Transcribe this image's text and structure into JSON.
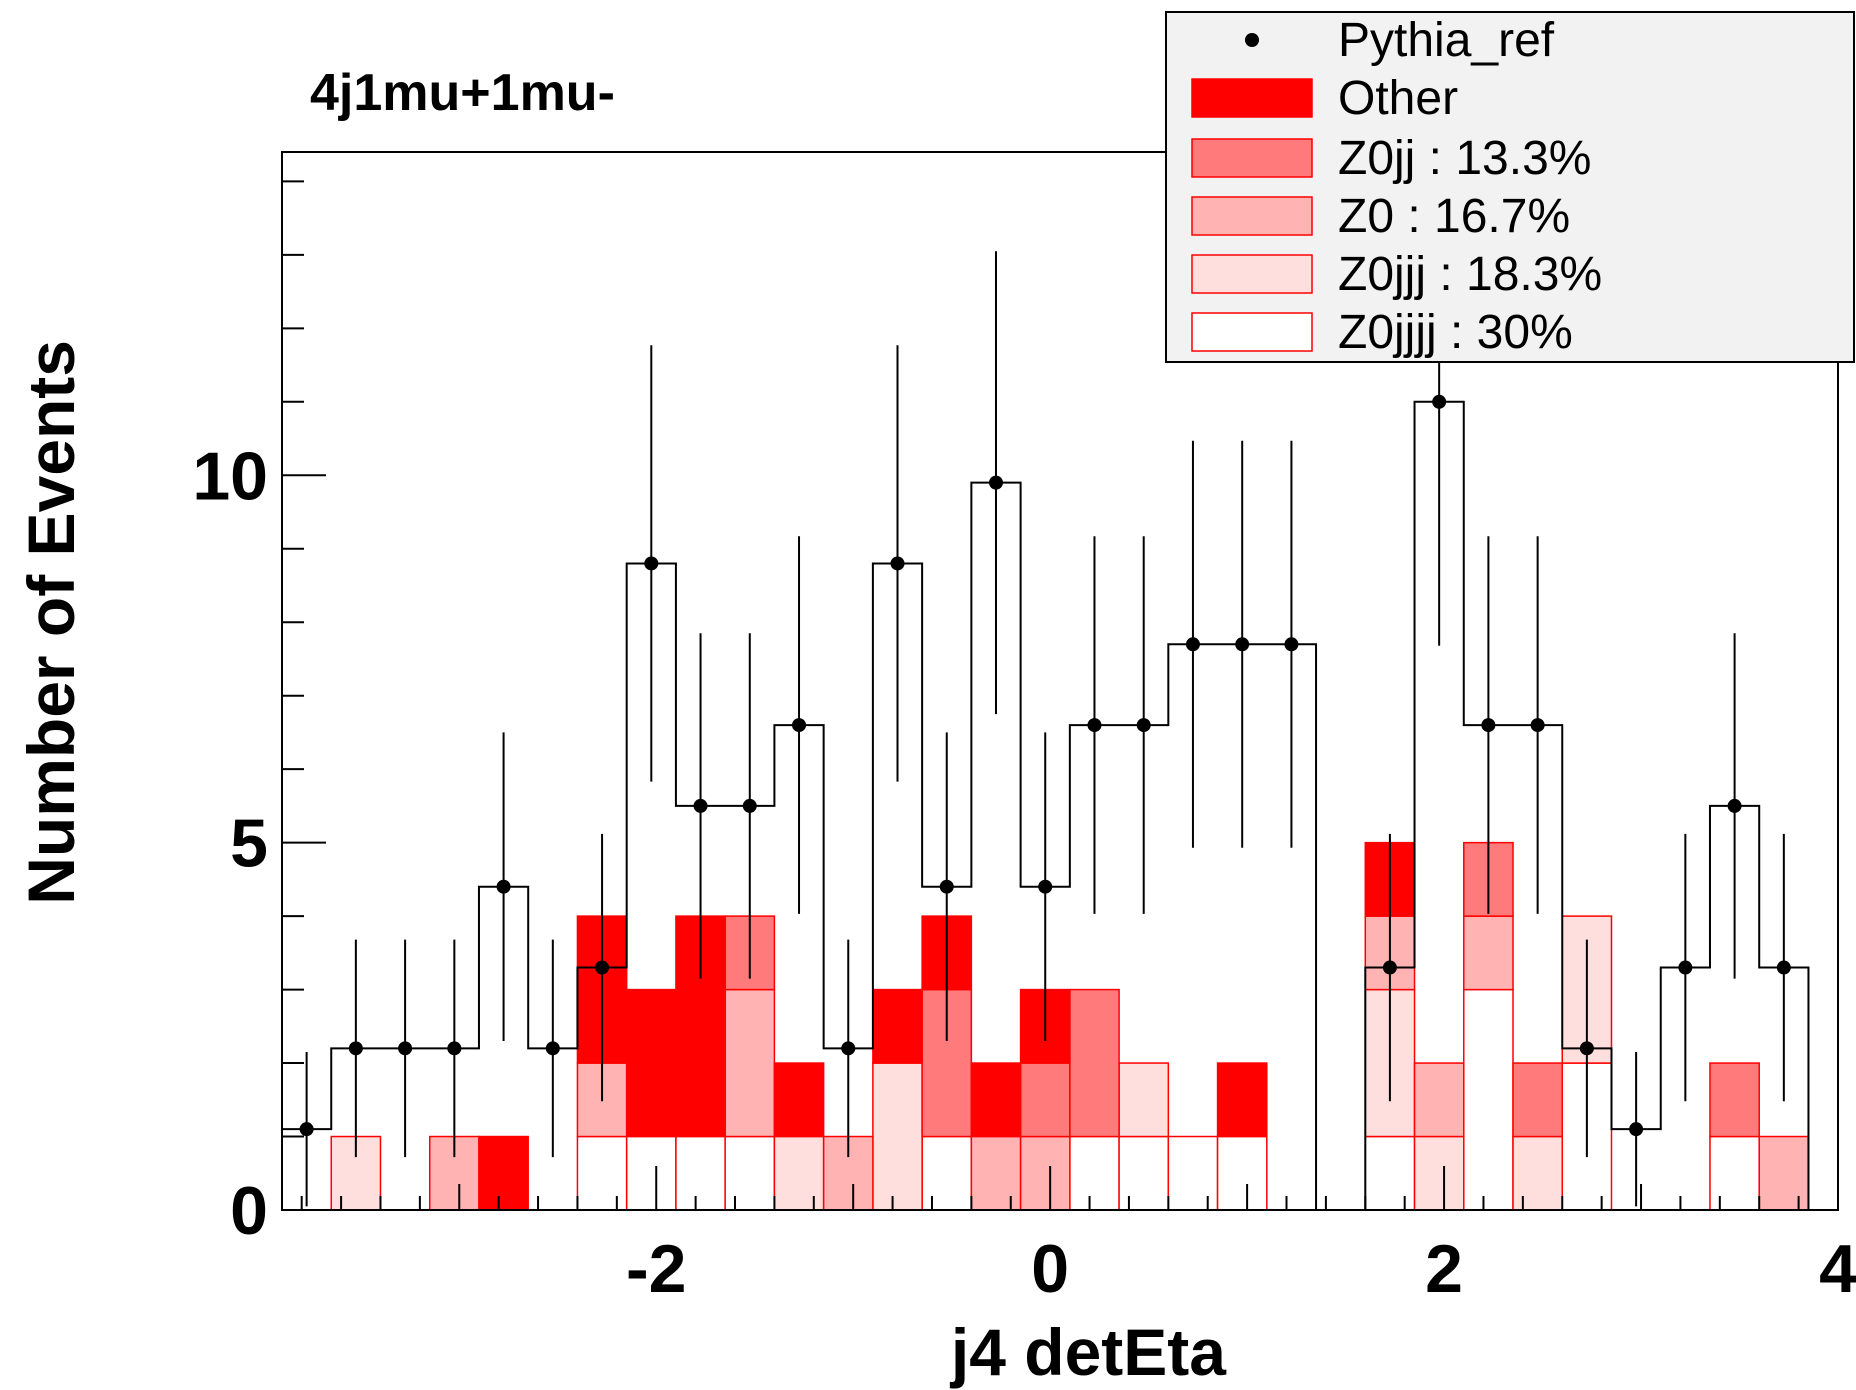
{
  "chart_data": {
    "type": "histogram",
    "title": "4j1mu+1mu-",
    "xlabel": "j4 detEta",
    "ylabel": "Number of Events",
    "xlim": [
      -3.9,
      4.0
    ],
    "ylim": [
      0,
      14.4
    ],
    "xticks": [
      -2,
      0,
      2,
      4
    ],
    "xtick_labels": [
      "-2",
      "0",
      "2",
      "4"
    ],
    "yticks": [
      0,
      5,
      10
    ],
    "ytick_labels": [
      "0",
      "5",
      "10"
    ],
    "grid": false,
    "legend_position": "top-right",
    "bin_edges": [
      -3.9,
      -3.65,
      -3.4,
      -3.15,
      -2.9,
      -2.65,
      -2.4,
      -2.15,
      -1.9,
      -1.65,
      -1.4,
      -1.15,
      -0.9,
      -0.65,
      -0.4,
      -0.15,
      0.1,
      0.35,
      0.6,
      0.85,
      1.1,
      1.35,
      1.6,
      1.85,
      2.1,
      2.35,
      2.6,
      2.85,
      3.1,
      3.35,
      3.6,
      3.85
    ],
    "series": [
      {
        "name": "Z0jjjj : 30%",
        "color": "#ffffff",
        "values": [
          0,
          0,
          0,
          0,
          0,
          0,
          1,
          1,
          1,
          1,
          0,
          0,
          0,
          1,
          0,
          0,
          1,
          1,
          1,
          1,
          0,
          0,
          1,
          0,
          3,
          0,
          2,
          0,
          0,
          1,
          0,
          0
        ]
      },
      {
        "name": "Z0jjj : 18.3%",
        "color": "#ffdede",
        "values": [
          0,
          1,
          0,
          0,
          0,
          0,
          0,
          0,
          0,
          0,
          1,
          0,
          2,
          0,
          0,
          0,
          0,
          1,
          0,
          0,
          0,
          0,
          2,
          1,
          0,
          1,
          2,
          0,
          0,
          0,
          0,
          0
        ]
      },
      {
        "name": "Z0 : 16.7%",
        "color": "#ffb3b3",
        "values": [
          0,
          0,
          0,
          1,
          0,
          0,
          1,
          0,
          0,
          2,
          0,
          1,
          0,
          0,
          1,
          1,
          0,
          0,
          0,
          0,
          0,
          0,
          1,
          1,
          1,
          0,
          0,
          0,
          0,
          0,
          1,
          0
        ]
      },
      {
        "name": "Z0jj : 13.3%",
        "color": "#ff7b7b",
        "values": [
          0,
          0,
          0,
          0,
          0,
          0,
          0,
          0,
          0,
          1,
          0,
          0,
          0,
          2,
          0,
          1,
          2,
          0,
          0,
          0,
          0,
          0,
          0,
          0,
          1,
          1,
          0,
          0,
          0,
          1,
          0,
          0
        ]
      },
      {
        "name": "Other",
        "color": "#ff0000",
        "values": [
          0,
          0,
          0,
          0,
          1,
          0,
          2,
          2,
          3,
          0,
          1,
          0,
          1,
          1,
          1,
          1,
          0,
          0,
          0,
          1,
          0,
          0,
          1,
          0,
          0,
          0,
          0,
          0,
          0,
          0,
          0,
          0
        ]
      }
    ],
    "reference": {
      "name": "Pythia_ref",
      "values": [
        1.1,
        2.2,
        2.2,
        2.2,
        4.4,
        2.2,
        3.3,
        8.8,
        5.5,
        5.5,
        6.6,
        2.2,
        8.8,
        4.4,
        9.9,
        4.4,
        6.6,
        6.6,
        7.7,
        7.7,
        7.7,
        0,
        3.3,
        11,
        6.6,
        6.6,
        2.2,
        1.1,
        3.3,
        5.5,
        3.3,
        3.3
      ],
      "errors": [
        1.05,
        1.48,
        1.48,
        1.48,
        2.1,
        1.48,
        1.82,
        2.97,
        2.35,
        2.35,
        2.57,
        1.48,
        2.97,
        2.1,
        3.15,
        2.1,
        2.57,
        2.57,
        2.77,
        2.77,
        2.77,
        0,
        1.82,
        3.32,
        2.57,
        2.57,
        1.48,
        1.05,
        1.82,
        2.35,
        1.82,
        1.82
      ]
    },
    "legend": {
      "entries": [
        {
          "label": "Pythia_ref",
          "style": "marker"
        },
        {
          "label": "Other",
          "color": "#ff0000"
        },
        {
          "label": "Z0jj : 13.3%",
          "color": "#ff7b7b"
        },
        {
          "label": "Z0 : 16.7%",
          "color": "#ffb3b3"
        },
        {
          "label": "Z0jjj : 18.3%",
          "color": "#ffdede"
        },
        {
          "label": "Z0jjjj : 30%",
          "color": "#ffffff"
        }
      ]
    }
  }
}
